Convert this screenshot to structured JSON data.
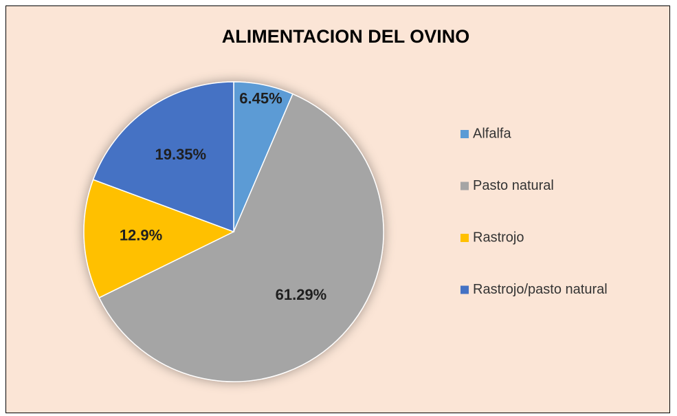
{
  "chart_data": {
    "type": "pie",
    "title": "ALIMENTACION DEL OVINO",
    "categories": [
      "Alfalfa",
      "Pasto natural",
      "Rastrojo",
      "Rastrojo/pasto natural"
    ],
    "values": [
      6.45,
      61.29,
      12.9,
      19.35
    ],
    "value_labels": [
      "6.45%",
      "61.29%",
      "12.9%",
      "19.35%"
    ],
    "colors": [
      "#5b9bd5",
      "#a5a5a5",
      "#ffc000",
      "#4472c4"
    ],
    "legend": "right"
  }
}
